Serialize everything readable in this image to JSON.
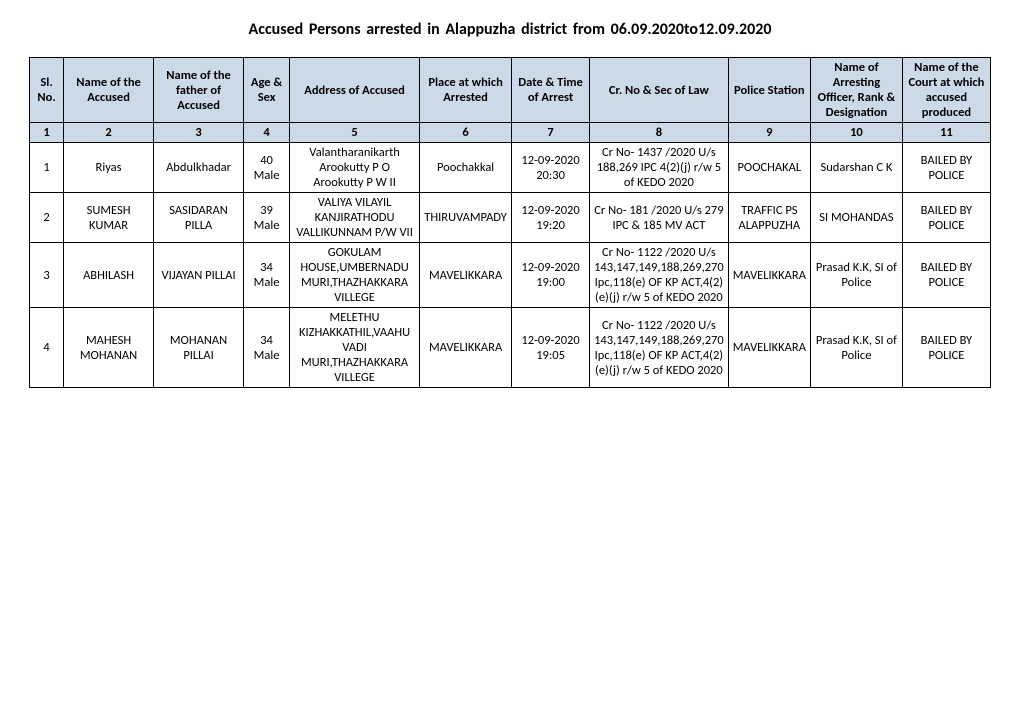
{
  "title": "Accused Persons arrested in   Alappuzha   district from   06.09.2020to12.09.2020",
  "columns": [
    "Sl. No.",
    "Name of the Accused",
    "Name of the father of Accused",
    "Age & Sex",
    "Address of Accused",
    "Place at which Arrested",
    "Date & Time of Arrest",
    "Cr. No & Sec of Law",
    "Police Station",
    "Name of Arresting Officer, Rank & Designation",
    "Name of the Court at which accused produced"
  ],
  "numrow": [
    "1",
    "2",
    "3",
    "4",
    "5",
    "6",
    "7",
    "8",
    "9",
    "10",
    "11"
  ],
  "rows": [
    {
      "sl": "1",
      "name": "Riyas",
      "father": "Abdulkhadar",
      "age": "40 Male",
      "address": "Valantharanikarth Arookutty P O Arookutty P W II",
      "place": "Poochakkal",
      "datetime": "12-09-2020 20:30",
      "crno": "Cr No- 1437 /2020 U/s 188,269 IPC 4(2)(j) r/w 5 of KEDO 2020",
      "station": "POOCHAKAL",
      "officer": "Sudarshan C K",
      "court": "BAILED BY POLICE"
    },
    {
      "sl": "2",
      "name": "SUMESH KUMAR",
      "father": "SASIDARAN PILLA",
      "age": "39 Male",
      "address": "VALIYA VILAYIL KANJIRATHODU VALLIKUNNAM P/W VII",
      "place": "THIRUVAMPADY",
      "datetime": "12-09-2020 19:20",
      "crno": "Cr No- 181 /2020 U/s 279 IPC & 185 MV ACT",
      "station": "TRAFFIC PS ALAPPUZHA",
      "officer": "SI MOHANDAS",
      "court": "BAILED BY POLICE"
    },
    {
      "sl": "3",
      "name": "ABHILASH",
      "father": "VIJAYAN PILLAI",
      "age": "34 Male",
      "address": "GOKULAM HOUSE,UMBERNADU MURI,THAZHAKKARA VILLEGE",
      "place": "MAVELIKKARA",
      "datetime": "12-09-2020 19:00",
      "crno": "Cr No- 1122 /2020 U/s 143,147,149,188,269,270 Ipc,118(e) OF KP ACT,4(2)(e)(j) r/w 5 of KEDO 2020",
      "station": "MAVELIKKARA",
      "officer": "Prasad K.K, SI of Police",
      "court": "BAILED BY POLICE"
    },
    {
      "sl": "4",
      "name": "MAHESH MOHANAN",
      "father": "MOHANAN PILLAI",
      "age": "34 Male",
      "address": "MELETHU KIZHAKKATHIL,VAAHU VADI MURI,THAZHAKKARA VILLEGE",
      "place": "MAVELIKKARA",
      "datetime": "12-09-2020 19:05",
      "crno": "Cr No- 1122 /2020 U/s 143,147,149,188,269,270 Ipc,118(e) OF KP ACT,4(2)(e)(j) r/w 5 of KEDO 2020",
      "station": "MAVELIKKARA",
      "officer": "Prasad K.K, SI of Police",
      "court": "BAILED BY POLICE"
    }
  ]
}
